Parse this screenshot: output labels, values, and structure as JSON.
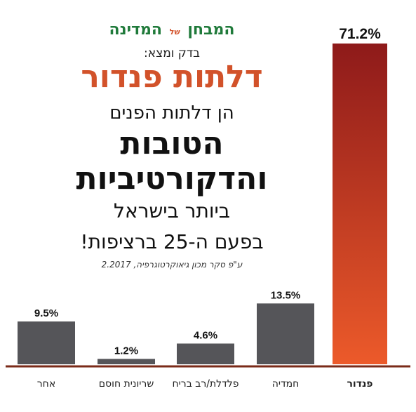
{
  "header": {
    "brand_main_1": "המבחן",
    "brand_small": "של",
    "brand_main_2": "המדינה",
    "checked_label": "בדק ומצא:",
    "product": "דלתות פנדור",
    "line1": "הן דלתות הפנים",
    "line2": "הטובות",
    "line3": "והדקורטיביות",
    "line4": "ביותר בישראל",
    "line5": "בפעם ה-25 ברציפות!",
    "source": "ע\"פ סקר מכון גיאוקרטוגרפיה, 2.2017"
  },
  "colors": {
    "bar_gray": "#555559",
    "bar_red_top": "#8e1a1a",
    "bar_red_bottom": "#ec5a2a",
    "baseline": "#7a2a18",
    "highlight_label": "#d2522a",
    "brand_green": "#1f7a3a"
  },
  "chart_data": {
    "type": "bar",
    "categories": [
      "אחר",
      "שריונית חוסם",
      "פלדלת/רב בריח",
      "חמדיה",
      "פנדור"
    ],
    "values": [
      9.5,
      1.2,
      4.6,
      13.5,
      71.2
    ],
    "value_labels": [
      "9.5%",
      "1.2%",
      "4.6%",
      "13.5%",
      "71.2%"
    ],
    "highlight_category": "פנדור",
    "ylim": [
      0,
      71.2
    ],
    "unit": "%"
  }
}
